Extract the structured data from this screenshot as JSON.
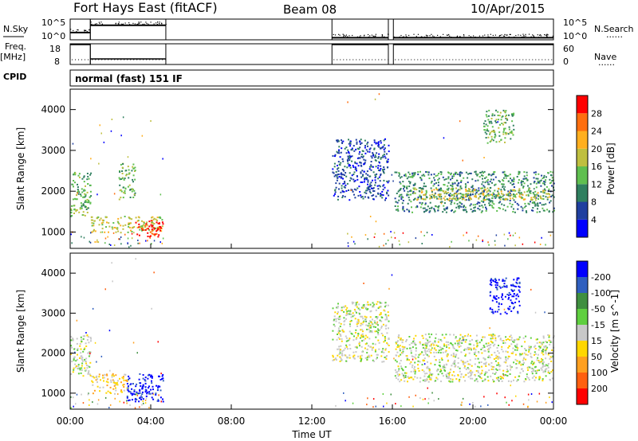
{
  "header": {
    "station": "Fort Hays East (fitACF)",
    "beam": "Beam 08",
    "date": "10/Apr/2015"
  },
  "left_labels": {
    "nsky": "N.Sky",
    "freq": "Freq.",
    "freq_unit": "[MHz]",
    "cpid": "CPID"
  },
  "right_labels": {
    "nsearch": "N.Search",
    "nave": "Nave",
    "dots": "......"
  },
  "cpid_text": "normal (fast) 151 IF",
  "x_axis": {
    "label": "Time UT",
    "ticks": [
      "00:00",
      "04:00",
      "08:00",
      "12:00",
      "16:00",
      "20:00",
      "00:00"
    ]
  },
  "colors": {
    "power_scale": [
      "#0000ff",
      "#1f3f9f",
      "#2f7f5f",
      "#5fbf4f",
      "#bfbf3f",
      "#ffaf1f",
      "#ff6f0f",
      "#ff0000"
    ],
    "velocity_scale": [
      "#0000ff",
      "#2f5fbf",
      "#3f8f3f",
      "#5fcf3f",
      "#c8c8c8",
      "#ffd700",
      "#ffa020",
      "#ff6010",
      "#ff0000"
    ],
    "ground_gray": "#c8c8c8"
  },
  "chart_data": [
    {
      "type": "line",
      "name": "noise-panel",
      "ylabel_left": "N.Sky",
      "ylabel_right": "N.Search",
      "left_ticks": [
        "10^5",
        "10^0"
      ],
      "right_ticks": [
        "10^5",
        "10^0"
      ],
      "x_hours": [
        0,
        24
      ],
      "segments": [
        {
          "x": [
            0.0,
            1.0
          ],
          "level": 0.35
        },
        {
          "x": [
            1.0,
            4.75
          ],
          "level": 0.7
        },
        {
          "x": [
            13.0,
            15.8
          ],
          "level": 0.1
        },
        {
          "x": [
            16.05,
            24.0
          ],
          "level": 0.1
        }
      ]
    },
    {
      "type": "line",
      "name": "frequency-panel",
      "ylabel_left": "Freq. [MHz]",
      "ylabel_right": "Nave",
      "left_ticks": [
        "18",
        "8"
      ],
      "right_ticks": [
        "60",
        "0"
      ],
      "segments": [
        {
          "x": [
            0.0,
            1.0
          ],
          "freq": 18,
          "nave": 15
        },
        {
          "x": [
            1.0,
            4.75
          ],
          "freq": 10.5,
          "nave": 15
        },
        {
          "x": [
            13.0,
            15.8
          ],
          "freq": 18,
          "nave": 15
        },
        {
          "x": [
            16.05,
            24.0
          ],
          "freq": 18,
          "nave": 15
        }
      ]
    },
    {
      "type": "heatmap",
      "name": "power-panel",
      "ylabel": "Slant Range [km]",
      "y_ticks": [
        1000,
        2000,
        3000,
        4000
      ],
      "ylim": [
        600,
        4500
      ],
      "xlim_hours": [
        0,
        24
      ],
      "colorbar": {
        "label": "Power [dB]",
        "ticks": [
          4,
          8,
          12,
          16,
          20,
          24,
          28
        ]
      },
      "patches": [
        {
          "t0": 0.0,
          "t1": 1.0,
          "r0": 1400,
          "r1": 2500,
          "level": 3
        },
        {
          "t0": 1.0,
          "t1": 4.6,
          "r0": 1000,
          "r1": 1400,
          "level": 4
        },
        {
          "t0": 3.2,
          "t1": 4.6,
          "r0": 900,
          "r1": 1300,
          "level": 7
        },
        {
          "t0": 2.4,
          "t1": 3.2,
          "r0": 1800,
          "r1": 2700,
          "level": 3
        },
        {
          "t0": 13.0,
          "t1": 15.8,
          "r0": 1800,
          "r1": 3300,
          "level": 1
        },
        {
          "t0": 16.1,
          "t1": 24.0,
          "r0": 1500,
          "r1": 2500,
          "level": 2
        },
        {
          "t0": 17.0,
          "t1": 23.8,
          "r0": 1800,
          "r1": 2100,
          "level": 4
        },
        {
          "t0": 20.5,
          "t1": 22.0,
          "r0": 3200,
          "r1": 4000,
          "level": 3
        }
      ]
    },
    {
      "type": "heatmap",
      "name": "velocity-panel",
      "ylabel": "Slant Range [km]",
      "y_ticks": [
        1000,
        2000,
        3000,
        4000
      ],
      "ylim": [
        600,
        4500
      ],
      "xlim_hours": [
        0,
        24
      ],
      "colorbar": {
        "label": "Velocity [m s^-1]",
        "ticks": [
          200,
          100,
          50,
          15,
          -15,
          -50,
          -100,
          -200
        ]
      },
      "patches": [
        {
          "t0": 0.0,
          "t1": 1.0,
          "r0": 1400,
          "r1": 2500,
          "level": 4
        },
        {
          "t0": 1.0,
          "t1": 2.8,
          "r0": 1000,
          "r1": 1500,
          "level": 5
        },
        {
          "t0": 2.8,
          "t1": 4.6,
          "r0": 800,
          "r1": 1500,
          "level": 0
        },
        {
          "t0": 13.0,
          "t1": 15.8,
          "r0": 1800,
          "r1": 3300,
          "level": 4
        },
        {
          "t0": 16.1,
          "t1": 24.0,
          "r0": 1300,
          "r1": 2500,
          "level": 4
        },
        {
          "t0": 20.8,
          "t1": 22.3,
          "r0": 3000,
          "r1": 3900,
          "level": 0
        }
      ]
    }
  ]
}
